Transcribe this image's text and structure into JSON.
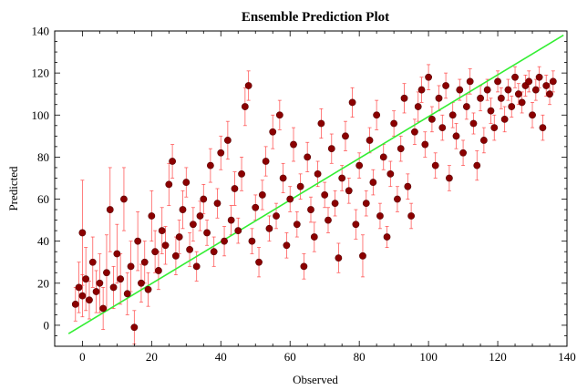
{
  "chart_data": {
    "type": "scatter",
    "title": "Ensemble Prediction Plot",
    "xlabel": "Observed",
    "ylabel": "Predicted",
    "xlim": [
      -8,
      140
    ],
    "ylim": [
      -10,
      140
    ],
    "x_ticks": [
      0,
      20,
      40,
      60,
      80,
      100,
      120,
      140
    ],
    "y_ticks": [
      0,
      20,
      40,
      60,
      80,
      100,
      120,
      140
    ],
    "grid": false,
    "legend": "none",
    "colors": {
      "points": "#8b0000",
      "error_bars": "#ff4040",
      "reference_line": "#33ee33"
    },
    "reference_line": {
      "x": [
        -4,
        139
      ],
      "y": [
        -4,
        138
      ]
    },
    "series": [
      {
        "error_bars": true,
        "points": [
          [
            -2,
            10,
            8
          ],
          [
            -1,
            18,
            12
          ],
          [
            0,
            14,
            10
          ],
          [
            0,
            44,
            25
          ],
          [
            1,
            22,
            15
          ],
          [
            2,
            12,
            9
          ],
          [
            3,
            30,
            12
          ],
          [
            4,
            16,
            10
          ],
          [
            5,
            20,
            14
          ],
          [
            6,
            8,
            10
          ],
          [
            7,
            25,
            18
          ],
          [
            8,
            55,
            20
          ],
          [
            9,
            18,
            10
          ],
          [
            10,
            34,
            14
          ],
          [
            11,
            22,
            12
          ],
          [
            12,
            60,
            15
          ],
          [
            13,
            15,
            10
          ],
          [
            14,
            28,
            12
          ],
          [
            15,
            -1,
            8
          ],
          [
            16,
            40,
            14
          ],
          [
            17,
            20,
            9
          ],
          [
            18,
            30,
            10
          ],
          [
            19,
            17,
            8
          ],
          [
            20,
            52,
            12
          ],
          [
            21,
            35,
            10
          ],
          [
            22,
            26,
            9
          ],
          [
            23,
            45,
            11
          ],
          [
            24,
            38,
            9
          ],
          [
            25,
            67,
            10
          ],
          [
            26,
            78,
            8
          ],
          [
            27,
            33,
            9
          ],
          [
            28,
            42,
            8
          ],
          [
            29,
            55,
            9
          ],
          [
            30,
            68,
            7
          ],
          [
            31,
            36,
            8
          ],
          [
            32,
            48,
            8
          ],
          [
            33,
            28,
            7
          ],
          [
            34,
            52,
            7
          ],
          [
            35,
            60,
            7
          ],
          [
            36,
            44,
            6
          ],
          [
            37,
            76,
            8
          ],
          [
            38,
            35,
            7
          ],
          [
            39,
            58,
            7
          ],
          [
            40,
            82,
            8
          ],
          [
            41,
            40,
            7
          ],
          [
            42,
            88,
            9
          ],
          [
            43,
            50,
            7
          ],
          [
            44,
            65,
            8
          ],
          [
            45,
            45,
            6
          ],
          [
            46,
            72,
            8
          ],
          [
            47,
            104,
            9
          ],
          [
            48,
            114,
            7
          ],
          [
            49,
            40,
            6
          ],
          [
            50,
            56,
            6
          ],
          [
            51,
            30,
            7
          ],
          [
            52,
            62,
            7
          ],
          [
            53,
            78,
            7
          ],
          [
            54,
            46,
            6
          ],
          [
            55,
            92,
            8
          ],
          [
            56,
            52,
            6
          ],
          [
            57,
            100,
            7
          ],
          [
            58,
            70,
            7
          ],
          [
            59,
            38,
            6
          ],
          [
            60,
            60,
            6
          ],
          [
            61,
            86,
            8
          ],
          [
            62,
            48,
            6
          ],
          [
            63,
            66,
            6
          ],
          [
            64,
            28,
            6
          ],
          [
            65,
            80,
            7
          ],
          [
            66,
            55,
            6
          ],
          [
            67,
            42,
            7
          ],
          [
            68,
            72,
            6
          ],
          [
            69,
            96,
            7
          ],
          [
            70,
            62,
            6
          ],
          [
            71,
            50,
            6
          ],
          [
            72,
            84,
            7
          ],
          [
            73,
            58,
            6
          ],
          [
            74,
            32,
            7
          ],
          [
            75,
            70,
            6
          ],
          [
            76,
            90,
            7
          ],
          [
            77,
            64,
            6
          ],
          [
            78,
            106,
            7
          ],
          [
            79,
            48,
            7
          ],
          [
            80,
            76,
            6
          ],
          [
            81,
            33,
            10
          ],
          [
            82,
            58,
            6
          ],
          [
            83,
            88,
            6
          ],
          [
            84,
            68,
            6
          ],
          [
            85,
            100,
            7
          ],
          [
            86,
            52,
            6
          ],
          [
            87,
            80,
            6
          ],
          [
            88,
            42,
            5
          ],
          [
            89,
            72,
            6
          ],
          [
            90,
            96,
            6
          ],
          [
            91,
            60,
            6
          ],
          [
            92,
            84,
            6
          ],
          [
            93,
            108,
            7
          ],
          [
            94,
            66,
            6
          ],
          [
            95,
            52,
            6
          ],
          [
            96,
            92,
            6
          ],
          [
            97,
            104,
            7
          ],
          [
            98,
            112,
            6
          ],
          [
            99,
            86,
            6
          ],
          [
            100,
            118,
            6
          ],
          [
            101,
            98,
            6
          ],
          [
            102,
            76,
            6
          ],
          [
            103,
            108,
            6
          ],
          [
            104,
            94,
            6
          ],
          [
            105,
            114,
            6
          ],
          [
            106,
            70,
            6
          ],
          [
            107,
            100,
            6
          ],
          [
            108,
            90,
            6
          ],
          [
            109,
            112,
            5
          ],
          [
            110,
            82,
            6
          ],
          [
            111,
            104,
            6
          ],
          [
            112,
            116,
            6
          ],
          [
            113,
            96,
            5
          ],
          [
            114,
            76,
            7
          ],
          [
            115,
            108,
            6
          ],
          [
            116,
            88,
            6
          ],
          [
            117,
            112,
            5
          ],
          [
            118,
            102,
            6
          ],
          [
            119,
            94,
            6
          ],
          [
            120,
            116,
            5
          ],
          [
            121,
            108,
            5
          ],
          [
            122,
            98,
            6
          ],
          [
            123,
            112,
            5
          ],
          [
            124,
            104,
            5
          ],
          [
            125,
            118,
            5
          ],
          [
            126,
            110,
            5
          ],
          [
            127,
            106,
            5
          ],
          [
            128,
            114,
            5
          ],
          [
            129,
            116,
            5
          ],
          [
            130,
            100,
            6
          ],
          [
            131,
            112,
            5
          ],
          [
            132,
            118,
            5
          ],
          [
            133,
            94,
            6
          ],
          [
            134,
            114,
            5
          ],
          [
            135,
            110,
            5
          ],
          [
            136,
            116,
            5
          ]
        ]
      }
    ]
  }
}
